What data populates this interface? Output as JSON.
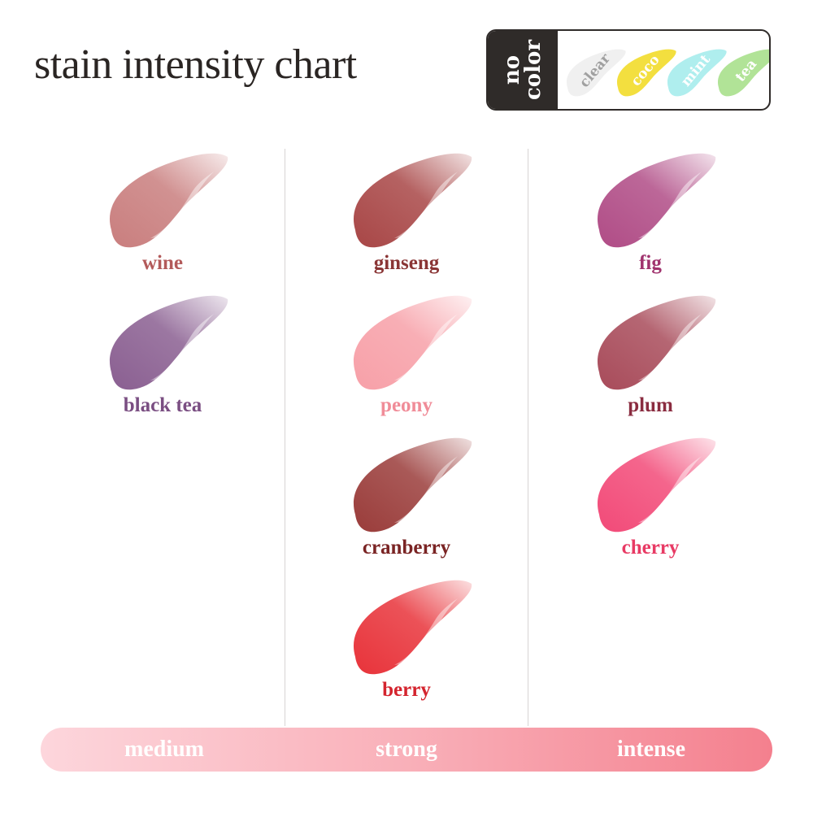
{
  "title": "stain intensity chart",
  "legend": {
    "heading": "no\ncolor",
    "items": [
      {
        "name": "clear",
        "color": "#eeeeee",
        "text_color": "#a0a0a0"
      },
      {
        "name": "coco",
        "color": "#f2dc2a",
        "text_color": "#ffffff"
      },
      {
        "name": "mint",
        "color": "#a6ecec",
        "text_color": "#ffffff"
      },
      {
        "name": "tea",
        "color": "#a8e08c",
        "text_color": "#ffffff"
      }
    ]
  },
  "columns": [
    {
      "level": "medium",
      "swatches": [
        {
          "name": "wine",
          "color": "#c97e7e",
          "label_color": "#b35a5a"
        },
        {
          "name": "black tea",
          "color": "#8a5f91",
          "label_color": "#7a4e82"
        }
      ]
    },
    {
      "level": "strong",
      "swatches": [
        {
          "name": "ginseng",
          "color": "#a84646",
          "label_color": "#8a3535"
        },
        {
          "name": "peony",
          "color": "#f7a0a8",
          "label_color": "#f08c98"
        },
        {
          "name": "cranberry",
          "color": "#9a3c3a",
          "label_color": "#7a2424"
        },
        {
          "name": "berry",
          "color": "#e8333a",
          "label_color": "#d4242e"
        }
      ]
    },
    {
      "level": "intense",
      "swatches": [
        {
          "name": "fig",
          "color": "#b04c86",
          "label_color": "#a0336e"
        },
        {
          "name": "plum",
          "color": "#a84b5a",
          "label_color": "#8a2c40"
        },
        {
          "name": "cherry",
          "color": "#f24a78",
          "label_color": "#e83a64"
        }
      ]
    }
  ],
  "scale": {
    "labels": [
      "medium",
      "strong",
      "intense"
    ]
  }
}
